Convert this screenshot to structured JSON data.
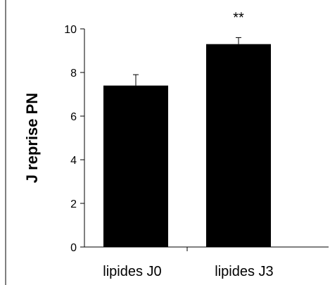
{
  "chart_data": {
    "type": "bar",
    "categories": [
      "lipides J0",
      "lipides J3"
    ],
    "values": [
      7.4,
      9.3
    ],
    "error": [
      0.5,
      0.3
    ],
    "annotations": [
      "",
      "**"
    ],
    "title": "",
    "xlabel": "",
    "ylabel": "J reprise PN",
    "ylim": [
      0,
      10
    ],
    "yticks": [
      0,
      2,
      4,
      6,
      8,
      10
    ],
    "grid": false,
    "legend": "none",
    "colors": {
      "bar": "#000000",
      "axis": "#000000",
      "background": "#ffffff"
    }
  }
}
